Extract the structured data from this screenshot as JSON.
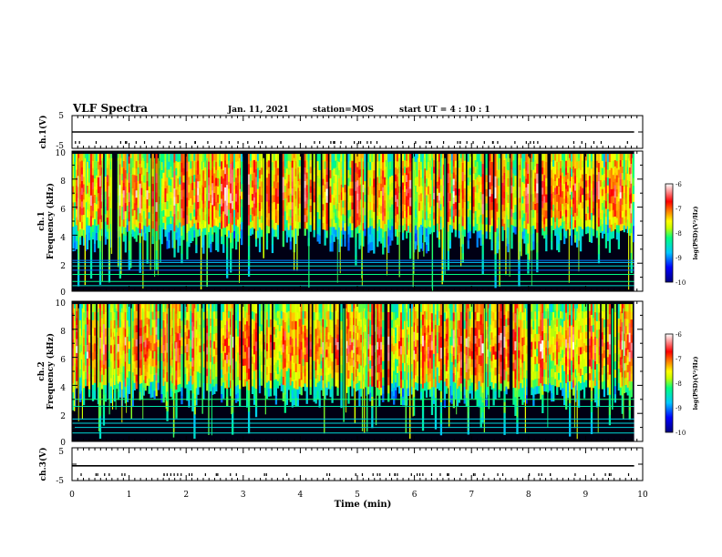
{
  "header": {
    "title": "VLF Spectra",
    "date": "Jan. 11, 2021",
    "station": "station=MOS",
    "start_time": "start UT =  4 : 10 : 1"
  },
  "chart_data": [
    {
      "type": "line",
      "name": "ch1-waveform",
      "ylabel": "ch.1(V)",
      "ylim": [
        -5,
        5
      ],
      "y_ticks": [
        "5",
        "-5"
      ],
      "x": [
        0,
        9.85
      ],
      "values": [
        0,
        0
      ]
    },
    {
      "type": "heatmap",
      "name": "ch1-spectrogram",
      "ylabel_channel": "ch.1",
      "ylabel": "Frequency (kHz)",
      "ylim": [
        0,
        10
      ],
      "y_ticks": [
        "0",
        "2",
        "4",
        "6",
        "8",
        "10"
      ],
      "xlim": [
        0,
        10
      ],
      "data_end_min": 9.85,
      "dominant_band_khz": [
        4.5,
        9.5
      ],
      "line_emissions_khz": [
        0.4,
        0.7,
        1.2,
        1.5,
        1.8,
        2.05,
        2.2
      ],
      "colorbar": {
        "label": "log(PSD)(V²/Hz)",
        "range": [
          -10,
          -6
        ],
        "ticks": [
          "-6",
          "-7",
          "-8",
          "-9",
          "-10"
        ],
        "colors": [
          "#000080",
          "#0000ff",
          "#00c8ff",
          "#00ff80",
          "#c8ff00",
          "#ffff00",
          "#ff8000",
          "#ff0000",
          "#ff9090",
          "#ffffff"
        ]
      }
    },
    {
      "type": "heatmap",
      "name": "ch2-spectrogram",
      "ylabel_channel": "ch.2",
      "ylabel": "Frequency (kHz)",
      "ylim": [
        0,
        10
      ],
      "y_ticks": [
        "0",
        "2",
        "4",
        "6",
        "8",
        "10"
      ],
      "xlim": [
        0,
        10
      ],
      "data_end_min": 9.85,
      "dominant_band_khz": [
        4.0,
        9.5
      ],
      "line_emissions_khz": [
        0.6,
        1.0,
        1.3,
        1.6,
        2.5,
        3.0
      ],
      "colorbar": {
        "label": "log(PSD)(V²/Hz)",
        "range": [
          -10,
          -6
        ],
        "ticks": [
          "-6",
          "-7",
          "-8",
          "-9",
          "-10"
        ],
        "colors": [
          "#000080",
          "#0000ff",
          "#00c8ff",
          "#00ff80",
          "#c8ff00",
          "#ffff00",
          "#ff8000",
          "#ff0000",
          "#ff9090",
          "#ffffff"
        ]
      }
    },
    {
      "type": "line",
      "name": "ch3-waveform",
      "ylabel": "ch.3(V)",
      "ylim": [
        -5,
        5
      ],
      "y_ticks": [
        "5",
        "-5"
      ],
      "x": [
        0,
        9.85
      ],
      "values": [
        -0.5,
        -0.5
      ]
    }
  ],
  "x_axis": {
    "label": "Time (min)",
    "ticks": [
      "0",
      "1",
      "2",
      "3",
      "4",
      "5",
      "6",
      "7",
      "8",
      "9",
      "10"
    ]
  }
}
